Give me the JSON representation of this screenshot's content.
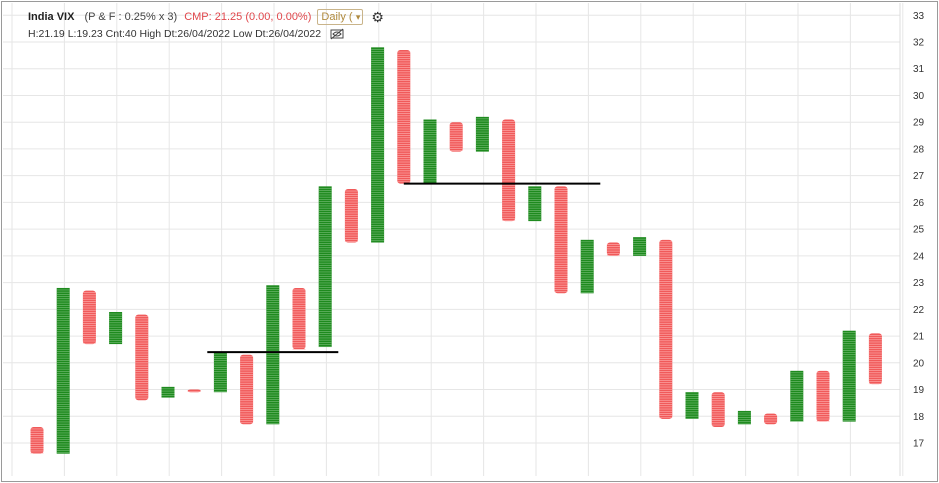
{
  "header": {
    "title": "India VIX",
    "params": "(P & F : 0.25% x 3)",
    "cmp": "CMP: 21.25 (0.00, 0.00%)",
    "interval": "Daily (",
    "stats": "H:21.19 L:19.23 Cnt:40 High Dt:26/04/2022 Low Dt:26/04/2022"
  },
  "colors": {
    "up": "#1e8a1e",
    "down": "#f05a5a",
    "grid": "#e6e6e6",
    "trendline": "#000000"
  },
  "icons": {
    "settings": "gear-icon",
    "visibility": "eye-off-icon",
    "dropdown": "chevron-down-icon"
  },
  "chart_data": {
    "type": "point-and-figure",
    "yticks": [
      17,
      18,
      19,
      20,
      21,
      22,
      23,
      24,
      25,
      26,
      27,
      28,
      29,
      30,
      31,
      32,
      33
    ],
    "ylim": [
      16.2,
      33.5
    ],
    "grid": true,
    "columns": [
      {
        "dir": "down",
        "high": 17.6,
        "low": 16.6
      },
      {
        "dir": "up",
        "high": 22.8,
        "low": 16.6
      },
      {
        "dir": "down",
        "high": 22.7,
        "low": 20.7
      },
      {
        "dir": "up",
        "high": 21.9,
        "low": 20.7
      },
      {
        "dir": "down",
        "high": 21.8,
        "low": 18.6
      },
      {
        "dir": "up",
        "high": 19.1,
        "low": 18.7
      },
      {
        "dir": "down",
        "high": 19.0,
        "low": 18.9
      },
      {
        "dir": "up",
        "high": 20.4,
        "low": 18.9
      },
      {
        "dir": "down",
        "high": 20.3,
        "low": 17.7
      },
      {
        "dir": "up",
        "high": 22.9,
        "low": 17.7
      },
      {
        "dir": "down",
        "high": 22.8,
        "low": 20.5
      },
      {
        "dir": "up",
        "high": 26.6,
        "low": 20.6
      },
      {
        "dir": "down",
        "high": 26.5,
        "low": 24.5
      },
      {
        "dir": "up",
        "high": 31.8,
        "low": 24.5
      },
      {
        "dir": "down",
        "high": 31.7,
        "low": 26.7
      },
      {
        "dir": "up",
        "high": 29.1,
        "low": 26.7
      },
      {
        "dir": "down",
        "high": 29.0,
        "low": 27.9
      },
      {
        "dir": "up",
        "high": 29.2,
        "low": 27.9
      },
      {
        "dir": "down",
        "high": 29.1,
        "low": 25.3
      },
      {
        "dir": "up",
        "high": 26.6,
        "low": 25.3
      },
      {
        "dir": "down",
        "high": 26.6,
        "low": 22.6
      },
      {
        "dir": "up",
        "high": 24.6,
        "low": 22.6
      },
      {
        "dir": "down",
        "high": 24.5,
        "low": 24.0
      },
      {
        "dir": "up",
        "high": 24.7,
        "low": 24.0
      },
      {
        "dir": "down",
        "high": 24.6,
        "low": 17.9
      },
      {
        "dir": "up",
        "high": 18.9,
        "low": 17.9
      },
      {
        "dir": "down",
        "high": 18.9,
        "low": 17.6
      },
      {
        "dir": "up",
        "high": 18.2,
        "low": 17.7
      },
      {
        "dir": "down",
        "high": 18.1,
        "low": 17.7
      },
      {
        "dir": "up",
        "high": 19.7,
        "low": 17.8
      },
      {
        "dir": "down",
        "high": 19.7,
        "low": 17.8
      },
      {
        "dir": "up",
        "high": 21.2,
        "low": 17.8
      },
      {
        "dir": "down",
        "high": 21.1,
        "low": 19.2
      }
    ],
    "trendlines": [
      {
        "y": 20.4,
        "from_col": 6.5,
        "to_col": 11.5
      },
      {
        "y": 26.7,
        "from_col": 14,
        "to_col": 21.5
      }
    ]
  }
}
